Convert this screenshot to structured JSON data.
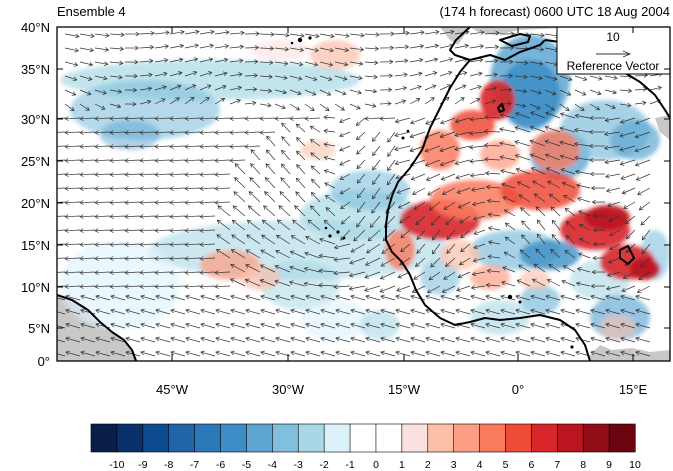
{
  "header": {
    "left_title": "Ensemble 4",
    "right_title": "(174 h forecast) 0600 UTC 18 Aug 2004"
  },
  "map": {
    "lat_labels": [
      "40°N",
      "35°N",
      "30°N",
      "25°N",
      "20°N",
      "15°N",
      "10°N",
      "5°N",
      "0°"
    ],
    "lon_labels": [
      "45°W",
      "30°W",
      "15°W",
      "0°",
      "15°E"
    ],
    "extent": {
      "lon_min": -58,
      "lon_max": 20,
      "lat_min": 0,
      "lat_max": 40
    }
  },
  "reference_vector": {
    "magnitude_label": "10",
    "caption": "Reference Vector"
  },
  "colorbar": {
    "tick_labels": [
      "-10",
      "-9",
      "-8",
      "-7",
      "-6",
      "-5",
      "-4",
      "-3",
      "-2",
      "-1",
      "0",
      "1",
      "2",
      "3",
      "4",
      "5",
      "6",
      "7",
      "8",
      "9",
      "10"
    ],
    "colors": [
      "#0a1e4a",
      "#08306b",
      "#0d4a8f",
      "#1f65a8",
      "#2b78b8",
      "#3d8ec7",
      "#5ea6d2",
      "#80bfdd",
      "#a8d8e6",
      "#dcf2fb",
      "#ffffff",
      "#ffffff",
      "#fde0e0",
      "#fcbfa8",
      "#fc9f85",
      "#fa7a5e",
      "#ef4a36",
      "#d8262a",
      "#bb1520",
      "#920c17",
      "#6a0510"
    ]
  },
  "colors": {
    "land_mask": "#c8c8c8",
    "coast": "#000000",
    "vector": "#333333"
  }
}
